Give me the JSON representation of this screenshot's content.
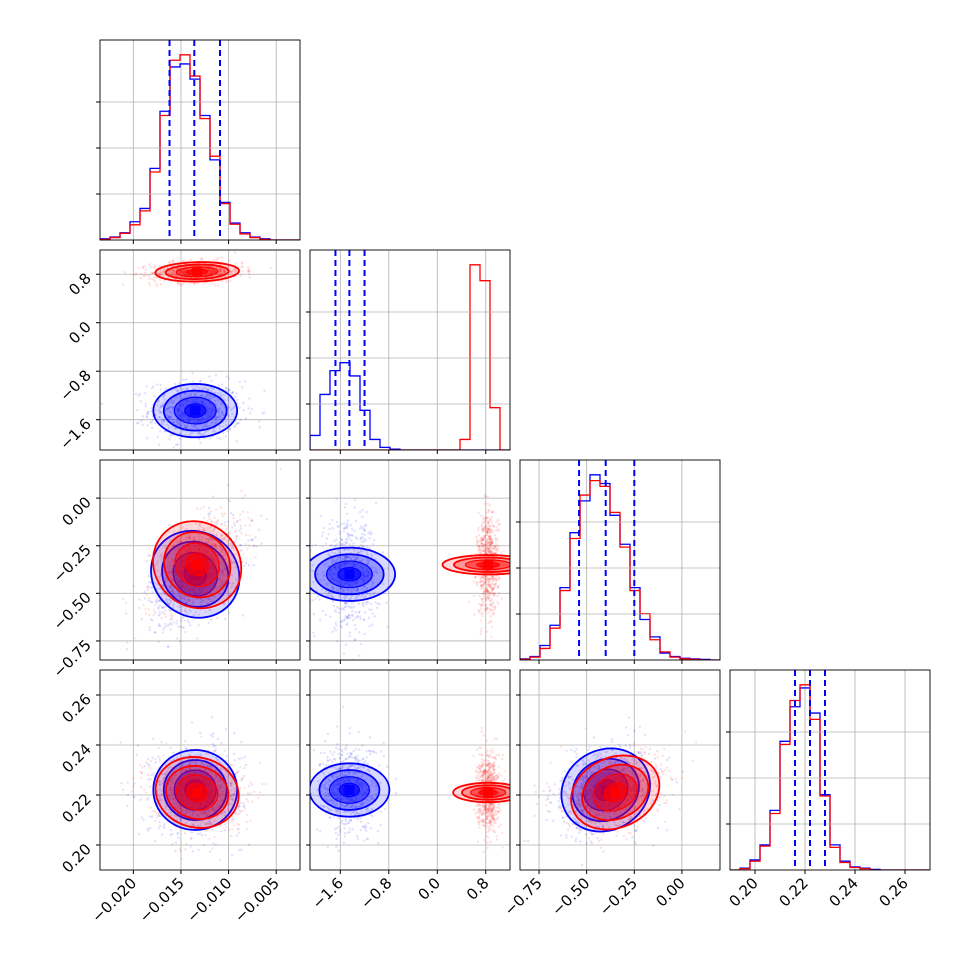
{
  "chart_data": {
    "type": "corner",
    "colors": {
      "series_a": "#0000ff",
      "series_b": "#ff0000",
      "grid": "#b0b0b0",
      "quantile_line": "#0000ff"
    },
    "grid": true,
    "series": [
      {
        "color": "#0000ff",
        "means": [
          -0.0135,
          -1.45,
          -0.4,
          0.222
        ],
        "stds": [
          0.0022,
          0.22,
          0.12,
          0.008
        ]
      },
      {
        "color": "#ff0000",
        "means": [
          -0.0133,
          0.84,
          -0.35,
          0.221
        ],
        "stds": [
          0.0022,
          0.08,
          0.12,
          0.007
        ]
      }
    ],
    "params": [
      {
        "range": [
          -0.0235,
          -0.0025
        ],
        "ticks": [
          -0.02,
          -0.015,
          -0.01,
          -0.005
        ],
        "tick_labels": [
          "−0.020",
          "−0.015",
          "−0.010",
          "−0.005"
        ]
      },
      {
        "range": [
          -2.1,
          1.2
        ],
        "ticks": [
          -1.6,
          -0.8,
          0.0,
          0.8
        ],
        "tick_labels": [
          "−1.6",
          "−0.8",
          "0.0",
          "0.8"
        ]
      },
      {
        "range": [
          -0.85,
          0.2
        ],
        "ticks": [
          -0.75,
          -0.5,
          -0.25,
          0.0
        ],
        "tick_labels": [
          "−0.75",
          "−0.50",
          "−0.25",
          "0.00"
        ]
      },
      {
        "range": [
          0.19,
          0.27
        ],
        "ticks": [
          0.2,
          0.22,
          0.24,
          0.26
        ],
        "tick_labels": [
          "0.20",
          "0.22",
          "0.24",
          "0.26"
        ]
      }
    ],
    "quantiles": [
      [
        -0.0162,
        -0.0136,
        -0.0109
      ],
      [
        -1.68,
        -1.45,
        -1.2
      ],
      [
        -0.54,
        -0.4,
        -0.25
      ],
      [
        0.216,
        0.222,
        0.228
      ]
    ],
    "histograms": [
      {
        "edges_range": [
          -0.0235,
          -0.0025
        ],
        "bins": 20,
        "blue": [
          2,
          5,
          12,
          30,
          52,
          118,
          212,
          285,
          290,
          265,
          205,
          132,
          62,
          28,
          12,
          5,
          2,
          0,
          0,
          0
        ],
        "red": [
          1,
          4,
          11,
          25,
          48,
          112,
          205,
          296,
          305,
          270,
          200,
          138,
          60,
          26,
          10,
          4,
          1,
          0,
          0,
          0
        ]
      },
      {
        "edges_range": [
          -2.1,
          1.2
        ],
        "bins": 20,
        "blue": [
          55,
          210,
          300,
          330,
          280,
          150,
          40,
          10,
          3,
          0,
          0,
          0,
          0,
          0,
          0,
          0,
          0,
          0,
          0,
          0
        ],
        "red": [
          0,
          0,
          0,
          0,
          0,
          0,
          0,
          0,
          0,
          0,
          0,
          0,
          0,
          0,
          0,
          40,
          700,
          640,
          160,
          0
        ]
      },
      {
        "edges_range": [
          -0.85,
          0.2
        ],
        "bins": 20,
        "blue": [
          2,
          6,
          25,
          60,
          125,
          220,
          275,
          320,
          305,
          250,
          200,
          125,
          70,
          40,
          12,
          6,
          3,
          2,
          1,
          0
        ],
        "red": [
          1,
          5,
          20,
          55,
          120,
          210,
          285,
          310,
          300,
          255,
          195,
          120,
          80,
          35,
          14,
          5,
          2,
          1,
          0,
          0
        ]
      },
      {
        "edges_range": [
          0.19,
          0.27
        ],
        "bins": 20,
        "blue": [
          0,
          3,
          16,
          40,
          95,
          205,
          260,
          290,
          250,
          120,
          40,
          14,
          5,
          3,
          1,
          0,
          0,
          0,
          0,
          0
        ],
        "red": [
          0,
          2,
          14,
          38,
          90,
          200,
          270,
          295,
          240,
          118,
          36,
          12,
          4,
          2,
          0,
          0,
          0,
          0,
          0,
          0
        ]
      }
    ],
    "correlations": {
      "blue": {
        "1-0": 0.0,
        "2-0": 0.45,
        "2-1": 0.0,
        "3-0": 0.0,
        "3-1": 0.0,
        "3-2": 0.25
      },
      "red": {
        "1-0": 0.1,
        "2-0": 0.55,
        "2-1": 0.0,
        "3-0": -0.1,
        "3-1": 0.0,
        "3-2": 0.3
      }
    }
  }
}
